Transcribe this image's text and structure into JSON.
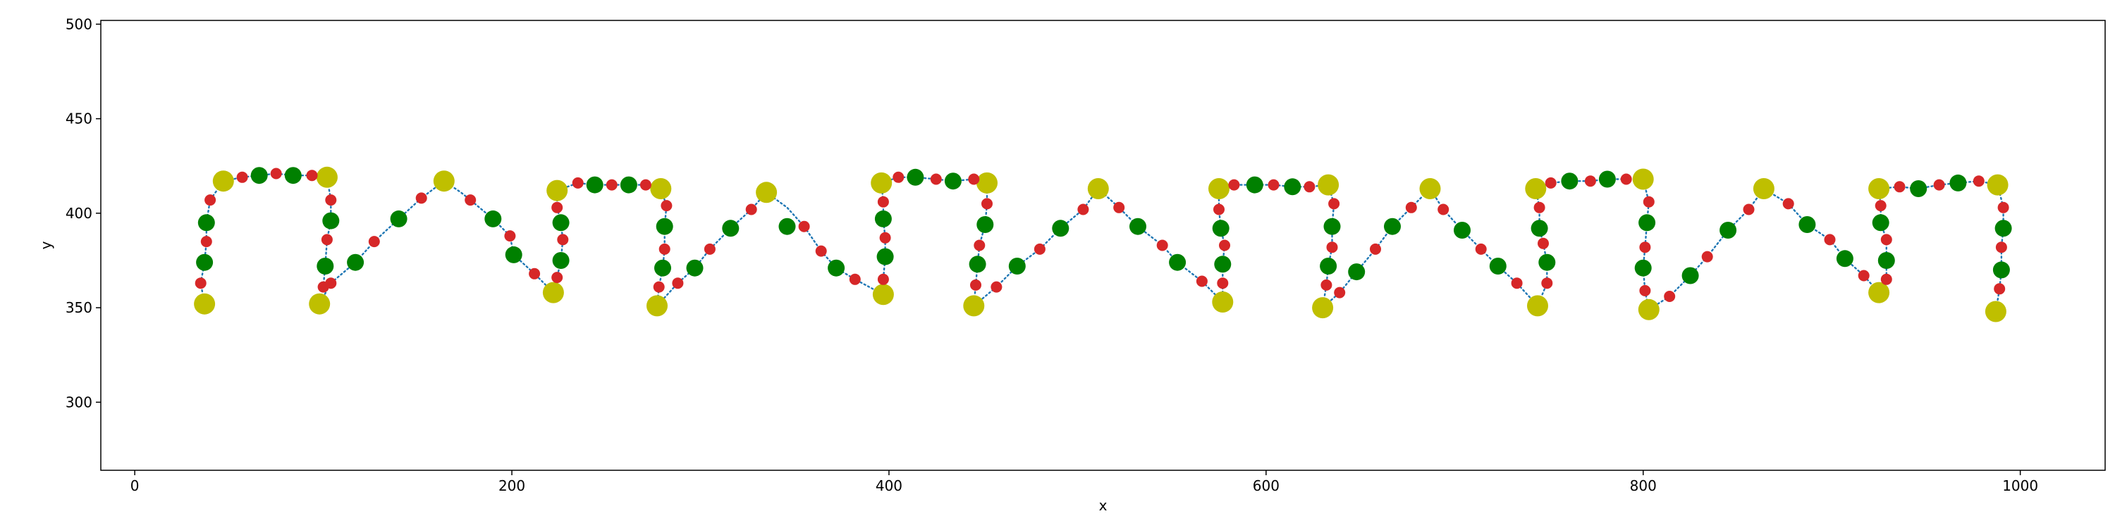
{
  "chart_data": {
    "type": "scatter",
    "title": "",
    "xlabel": "x",
    "ylabel": "y",
    "xlim": [
      -18,
      1045
    ],
    "ylim": [
      264,
      502
    ],
    "xticks": [
      0,
      200,
      400,
      600,
      800,
      1000
    ],
    "yticks": [
      300,
      350,
      400,
      450,
      500
    ],
    "grid": false,
    "legend": "none",
    "colors": {
      "path": "#1f77b4",
      "small": "#d62728",
      "medium": "#008000",
      "large": "#bfbf00"
    },
    "path": [
      [
        37,
        352
      ],
      [
        35,
        363
      ],
      [
        37,
        374
      ],
      [
        38,
        385
      ],
      [
        38,
        395
      ],
      [
        40,
        407
      ],
      [
        47,
        417
      ],
      [
        57,
        419
      ],
      [
        66,
        420
      ],
      [
        75,
        421
      ],
      [
        84,
        420
      ],
      [
        94,
        420
      ],
      [
        102,
        419
      ],
      [
        104,
        407
      ],
      [
        104,
        396
      ],
      [
        102,
        386
      ],
      [
        101,
        372
      ],
      [
        100,
        361
      ],
      [
        98,
        352
      ],
      [
        104,
        363
      ],
      [
        117,
        374
      ],
      [
        127,
        385
      ],
      [
        140,
        397
      ],
      [
        152,
        408
      ],
      [
        164,
        417
      ],
      [
        173,
        411
      ],
      [
        178,
        407
      ],
      [
        190,
        397
      ],
      [
        199,
        388
      ],
      [
        201,
        378
      ],
      [
        212,
        368
      ],
      [
        222,
        358
      ],
      [
        224,
        366
      ],
      [
        226,
        375
      ],
      [
        227,
        386
      ],
      [
        226,
        395
      ],
      [
        224,
        403
      ],
      [
        224,
        412
      ],
      [
        235,
        416
      ],
      [
        244,
        415
      ],
      [
        253,
        415
      ],
      [
        262,
        415
      ],
      [
        271,
        415
      ],
      [
        279,
        413
      ],
      [
        282,
        404
      ],
      [
        281,
        393
      ],
      [
        281,
        381
      ],
      [
        280,
        371
      ],
      [
        278,
        361
      ],
      [
        277,
        351
      ],
      [
        288,
        363
      ],
      [
        297,
        371
      ],
      [
        305,
        381
      ],
      [
        316,
        392
      ],
      [
        327,
        402
      ],
      [
        335,
        411
      ],
      [
        346,
        403
      ],
      [
        355,
        393
      ],
      [
        364,
        380
      ],
      [
        372,
        371
      ],
      [
        382,
        365
      ],
      [
        397,
        357
      ],
      [
        397,
        365
      ],
      [
        398,
        377
      ],
      [
        398,
        387
      ],
      [
        397,
        397
      ],
      [
        397,
        406
      ],
      [
        396,
        416
      ],
      [
        405,
        419
      ],
      [
        414,
        419
      ],
      [
        425,
        418
      ],
      [
        434,
        417
      ],
      [
        445,
        418
      ],
      [
        452,
        416
      ],
      [
        452,
        405
      ],
      [
        451,
        394
      ],
      [
        448,
        383
      ],
      [
        447,
        373
      ],
      [
        446,
        362
      ],
      [
        445,
        351
      ],
      [
        457,
        361
      ],
      [
        468,
        372
      ],
      [
        480,
        381
      ],
      [
        491,
        392
      ],
      [
        503,
        402
      ],
      [
        511,
        413
      ],
      [
        522,
        403
      ],
      [
        532,
        393
      ],
      [
        545,
        383
      ],
      [
        553,
        374
      ],
      [
        566,
        364
      ],
      [
        577,
        353
      ],
      [
        577,
        363
      ],
      [
        577,
        373
      ],
      [
        578,
        383
      ],
      [
        576,
        392
      ],
      [
        575,
        402
      ],
      [
        575,
        413
      ],
      [
        583,
        415
      ],
      [
        594,
        415
      ],
      [
        604,
        415
      ],
      [
        614,
        414
      ],
      [
        623,
        414
      ],
      [
        633,
        415
      ],
      [
        636,
        405
      ],
      [
        635,
        393
      ],
      [
        635,
        382
      ],
      [
        633,
        372
      ],
      [
        632,
        362
      ],
      [
        630,
        350
      ],
      [
        639,
        358
      ],
      [
        648,
        369
      ],
      [
        658,
        381
      ],
      [
        667,
        393
      ],
      [
        677,
        403
      ],
      [
        687,
        413
      ],
      [
        694,
        402
      ],
      [
        704,
        391
      ],
      [
        714,
        381
      ],
      [
        723,
        372
      ],
      [
        733,
        363
      ],
      [
        744,
        351
      ],
      [
        749,
        363
      ],
      [
        749,
        374
      ],
      [
        747,
        384
      ],
      [
        745,
        392
      ],
      [
        745,
        403
      ],
      [
        743,
        413
      ],
      [
        751,
        416
      ],
      [
        761,
        417
      ],
      [
        772,
        417
      ],
      [
        781,
        418
      ],
      [
        791,
        418
      ],
      [
        800,
        418
      ],
      [
        803,
        406
      ],
      [
        802,
        395
      ],
      [
        801,
        382
      ],
      [
        800,
        371
      ],
      [
        801,
        359
      ],
      [
        803,
        349
      ],
      [
        814,
        356
      ],
      [
        825,
        367
      ],
      [
        834,
        377
      ],
      [
        845,
        391
      ],
      [
        856,
        402
      ],
      [
        864,
        413
      ],
      [
        877,
        405
      ],
      [
        887,
        394
      ],
      [
        899,
        386
      ],
      [
        907,
        376
      ],
      [
        917,
        367
      ],
      [
        925,
        358
      ],
      [
        929,
        365
      ],
      [
        929,
        375
      ],
      [
        929,
        386
      ],
      [
        926,
        395
      ],
      [
        926,
        404
      ],
      [
        925,
        413
      ],
      [
        936,
        414
      ],
      [
        946,
        413
      ],
      [
        957,
        415
      ],
      [
        967,
        416
      ],
      [
        978,
        417
      ],
      [
        988,
        415
      ],
      [
        991,
        403
      ],
      [
        991,
        392
      ],
      [
        990,
        382
      ],
      [
        990,
        370
      ],
      [
        989,
        360
      ],
      [
        987,
        348
      ]
    ],
    "small_points": [
      [
        35,
        363
      ],
      [
        38,
        385
      ],
      [
        40,
        407
      ],
      [
        57,
        419
      ],
      [
        75,
        421
      ],
      [
        94,
        420
      ],
      [
        104,
        407
      ],
      [
        102,
        386
      ],
      [
        100,
        361
      ],
      [
        104,
        363
      ],
      [
        127,
        385
      ],
      [
        152,
        408
      ],
      [
        178,
        407
      ],
      [
        199,
        388
      ],
      [
        212,
        368
      ],
      [
        224,
        366
      ],
      [
        227,
        386
      ],
      [
        224,
        403
      ],
      [
        235,
        416
      ],
      [
        253,
        415
      ],
      [
        271,
        415
      ],
      [
        282,
        404
      ],
      [
        281,
        381
      ],
      [
        278,
        361
      ],
      [
        288,
        363
      ],
      [
        305,
        381
      ],
      [
        327,
        402
      ],
      [
        355,
        393
      ],
      [
        364,
        380
      ],
      [
        382,
        365
      ],
      [
        397,
        365
      ],
      [
        398,
        387
      ],
      [
        397,
        406
      ],
      [
        405,
        419
      ],
      [
        425,
        418
      ],
      [
        445,
        418
      ],
      [
        452,
        405
      ],
      [
        448,
        383
      ],
      [
        446,
        362
      ],
      [
        457,
        361
      ],
      [
        480,
        381
      ],
      [
        503,
        402
      ],
      [
        522,
        403
      ],
      [
        545,
        383
      ],
      [
        566,
        364
      ],
      [
        577,
        363
      ],
      [
        578,
        383
      ],
      [
        575,
        402
      ],
      [
        583,
        415
      ],
      [
        604,
        415
      ],
      [
        623,
        414
      ],
      [
        636,
        405
      ],
      [
        635,
        382
      ],
      [
        632,
        362
      ],
      [
        639,
        358
      ],
      [
        658,
        381
      ],
      [
        677,
        403
      ],
      [
        694,
        402
      ],
      [
        714,
        381
      ],
      [
        733,
        363
      ],
      [
        749,
        363
      ],
      [
        747,
        384
      ],
      [
        745,
        403
      ],
      [
        751,
        416
      ],
      [
        772,
        417
      ],
      [
        791,
        418
      ],
      [
        803,
        406
      ],
      [
        801,
        382
      ],
      [
        801,
        359
      ],
      [
        814,
        356
      ],
      [
        834,
        377
      ],
      [
        856,
        402
      ],
      [
        877,
        405
      ],
      [
        899,
        386
      ],
      [
        917,
        367
      ],
      [
        929,
        365
      ],
      [
        929,
        386
      ],
      [
        926,
        404
      ],
      [
        936,
        414
      ],
      [
        957,
        415
      ],
      [
        978,
        417
      ],
      [
        991,
        403
      ],
      [
        990,
        382
      ],
      [
        989,
        360
      ]
    ],
    "medium_points": [
      [
        37,
        374
      ],
      [
        38,
        395
      ],
      [
        66,
        420
      ],
      [
        84,
        420
      ],
      [
        104,
        396
      ],
      [
        101,
        372
      ],
      [
        117,
        374
      ],
      [
        140,
        397
      ],
      [
        190,
        397
      ],
      [
        201,
        378
      ],
      [
        226,
        375
      ],
      [
        226,
        395
      ],
      [
        244,
        415
      ],
      [
        262,
        415
      ],
      [
        281,
        393
      ],
      [
        280,
        371
      ],
      [
        297,
        371
      ],
      [
        316,
        392
      ],
      [
        346,
        393
      ],
      [
        372,
        371
      ],
      [
        398,
        377
      ],
      [
        397,
        397
      ],
      [
        414,
        419
      ],
      [
        434,
        417
      ],
      [
        451,
        394
      ],
      [
        447,
        373
      ],
      [
        468,
        372
      ],
      [
        491,
        392
      ],
      [
        532,
        393
      ],
      [
        553,
        374
      ],
      [
        577,
        373
      ],
      [
        576,
        392
      ],
      [
        594,
        415
      ],
      [
        614,
        414
      ],
      [
        635,
        393
      ],
      [
        633,
        372
      ],
      [
        648,
        369
      ],
      [
        667,
        393
      ],
      [
        704,
        391
      ],
      [
        723,
        372
      ],
      [
        749,
        374
      ],
      [
        745,
        392
      ],
      [
        761,
        417
      ],
      [
        781,
        418
      ],
      [
        802,
        395
      ],
      [
        800,
        371
      ],
      [
        825,
        367
      ],
      [
        845,
        391
      ],
      [
        887,
        394
      ],
      [
        907,
        376
      ],
      [
        929,
        375
      ],
      [
        926,
        395
      ],
      [
        946,
        413
      ],
      [
        967,
        416
      ],
      [
        991,
        392
      ],
      [
        990,
        370
      ]
    ],
    "large_points": [
      [
        37,
        352
      ],
      [
        47,
        417
      ],
      [
        102,
        419
      ],
      [
        98,
        352
      ],
      [
        164,
        417
      ],
      [
        222,
        358
      ],
      [
        224,
        412
      ],
      [
        279,
        413
      ],
      [
        277,
        351
      ],
      [
        335,
        411
      ],
      [
        397,
        357
      ],
      [
        396,
        416
      ],
      [
        452,
        416
      ],
      [
        445,
        351
      ],
      [
        511,
        413
      ],
      [
        577,
        353
      ],
      [
        575,
        413
      ],
      [
        633,
        415
      ],
      [
        630,
        350
      ],
      [
        687,
        413
      ],
      [
        744,
        351
      ],
      [
        743,
        413
      ],
      [
        800,
        418
      ],
      [
        803,
        349
      ],
      [
        864,
        413
      ],
      [
        925,
        358
      ],
      [
        925,
        413
      ],
      [
        988,
        415
      ],
      [
        987,
        348
      ]
    ]
  }
}
